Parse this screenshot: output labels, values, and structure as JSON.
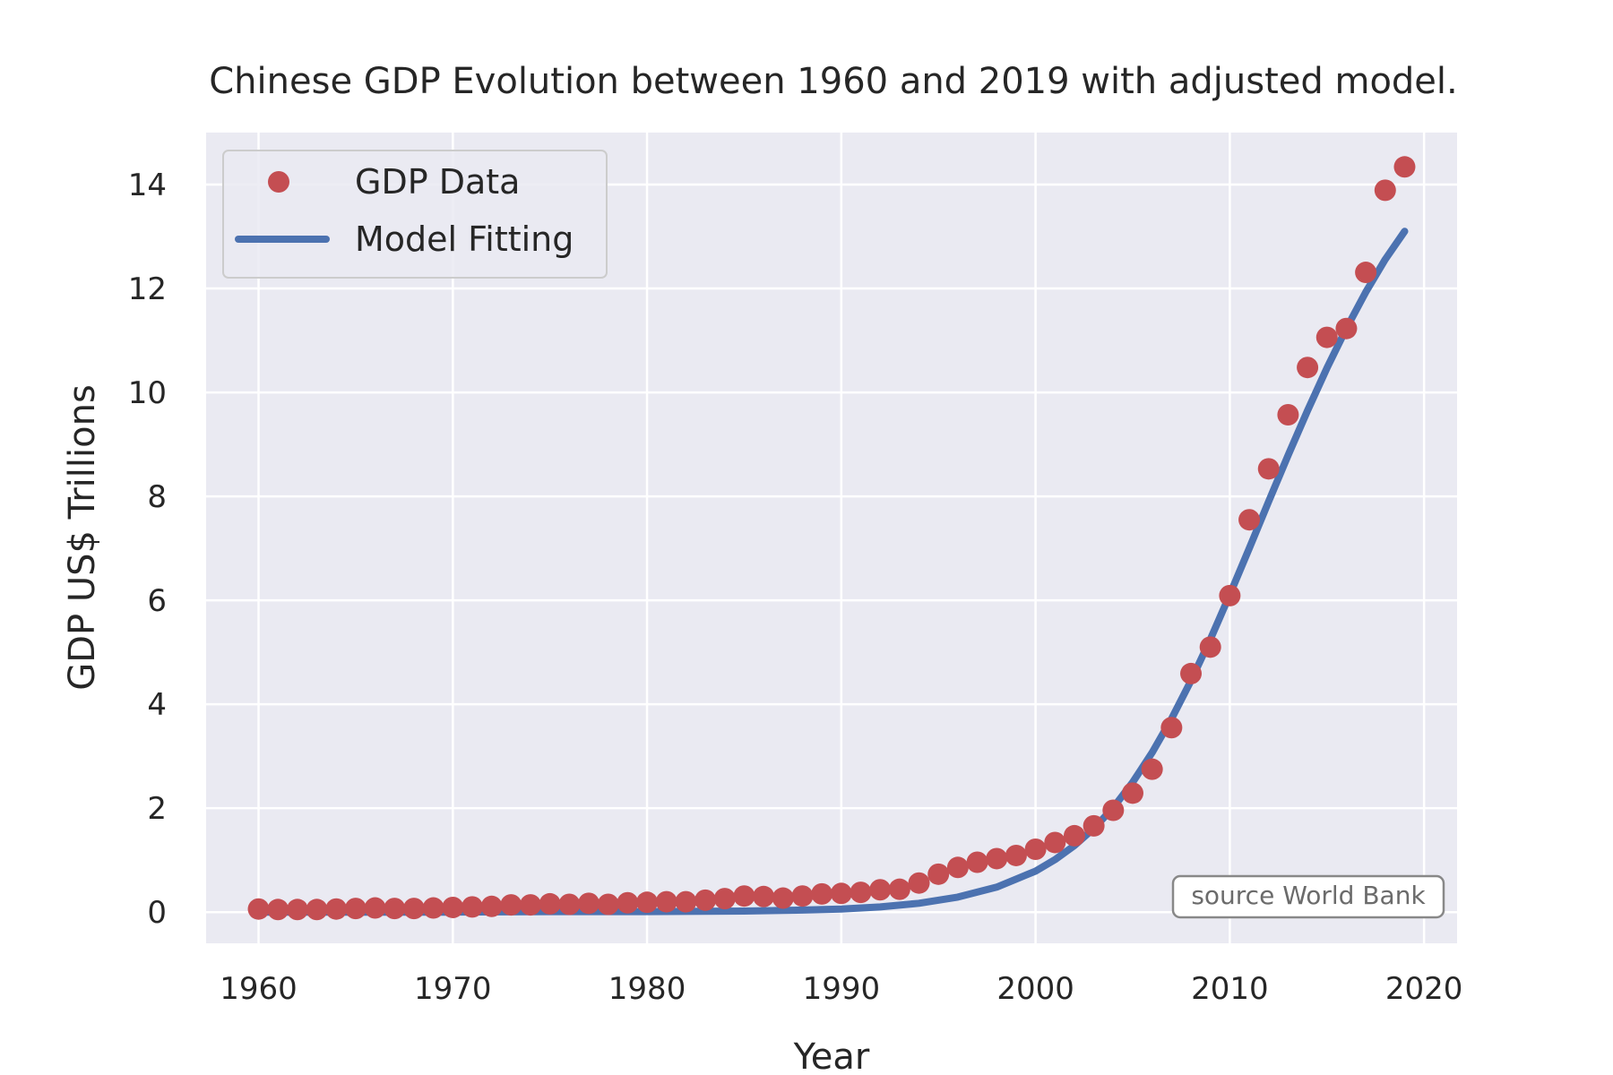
{
  "chart_data": {
    "type": "scatter",
    "title": "Chinese GDP Evolution between 1960 and 2019 with adjusted model.",
    "xlabel": "Year",
    "ylabel": "GDP US$ Trillions",
    "xlim": [
      1957.3,
      2021.7
    ],
    "ylim": [
      -0.6,
      15.0
    ],
    "x_ticks": [
      1960,
      1970,
      1980,
      1990,
      2000,
      2010,
      2020
    ],
    "y_ticks": [
      0,
      2,
      4,
      6,
      8,
      10,
      12,
      14
    ],
    "grid": true,
    "legend_position": "top-left",
    "annotation": "source World Bank",
    "colors": {
      "background": "#eaeaf2",
      "grid": "#ffffff",
      "data": "#c44e52",
      "model": "#4c72b0"
    },
    "series": [
      {
        "name": "GDP Data",
        "kind": "scatter",
        "x": [
          1960,
          1961,
          1962,
          1963,
          1964,
          1965,
          1966,
          1967,
          1968,
          1969,
          1970,
          1971,
          1972,
          1973,
          1974,
          1975,
          1976,
          1977,
          1978,
          1979,
          1980,
          1981,
          1982,
          1983,
          1984,
          1985,
          1986,
          1987,
          1988,
          1989,
          1990,
          1991,
          1992,
          1993,
          1994,
          1995,
          1996,
          1997,
          1998,
          1999,
          2000,
          2001,
          2002,
          2003,
          2004,
          2005,
          2006,
          2007,
          2008,
          2009,
          2010,
          2011,
          2012,
          2013,
          2014,
          2015,
          2016,
          2017,
          2018,
          2019
        ],
        "y": [
          0.06,
          0.05,
          0.05,
          0.05,
          0.06,
          0.07,
          0.08,
          0.07,
          0.07,
          0.08,
          0.09,
          0.1,
          0.11,
          0.14,
          0.14,
          0.16,
          0.15,
          0.17,
          0.15,
          0.18,
          0.19,
          0.2,
          0.2,
          0.23,
          0.26,
          0.31,
          0.3,
          0.27,
          0.31,
          0.35,
          0.36,
          0.38,
          0.43,
          0.44,
          0.56,
          0.73,
          0.86,
          0.96,
          1.03,
          1.09,
          1.21,
          1.34,
          1.47,
          1.66,
          1.96,
          2.29,
          2.75,
          3.55,
          4.59,
          5.1,
          6.09,
          7.55,
          8.53,
          9.57,
          10.48,
          11.06,
          11.23,
          12.31,
          13.89,
          14.34
        ]
      },
      {
        "name": "Model Fitting",
        "kind": "line",
        "x": [
          1960,
          1965,
          1970,
          1975,
          1980,
          1985,
          1988,
          1990,
          1992,
          1994,
          1996,
          1998,
          2000,
          2001,
          2002,
          2003,
          2004,
          2005,
          2006,
          2007,
          2008,
          2009,
          2010,
          2011,
          2012,
          2013,
          2014,
          2015,
          2016,
          2017,
          2018,
          2019
        ],
        "y": [
          0.0,
          0.0,
          0.0,
          0.01,
          0.01,
          0.02,
          0.04,
          0.06,
          0.1,
          0.17,
          0.29,
          0.48,
          0.79,
          1.01,
          1.28,
          1.61,
          2.01,
          2.5,
          3.07,
          3.72,
          4.45,
          5.25,
          6.11,
          7.0,
          7.9,
          8.79,
          9.65,
          10.47,
          11.23,
          11.93,
          12.56,
          13.1
        ]
      }
    ]
  }
}
